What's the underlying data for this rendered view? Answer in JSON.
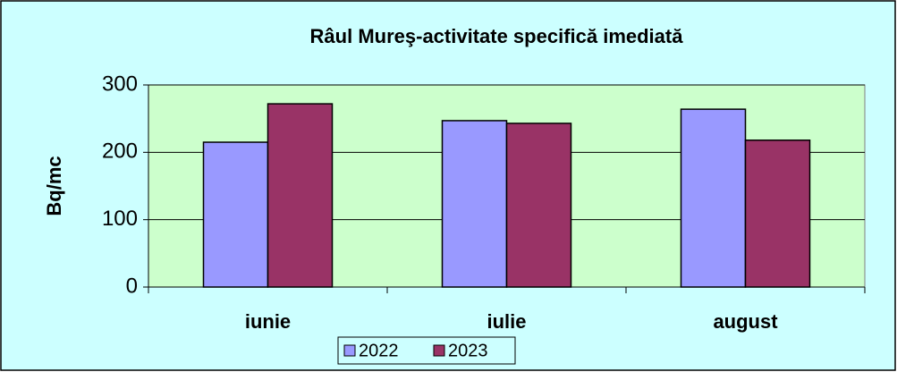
{
  "chart_data": {
    "type": "bar",
    "title": "Râul Mureş-activitate specifică imediată",
    "y_label": "Bq/mc",
    "categories": [
      "iunie",
      "iulie",
      "august"
    ],
    "series": [
      {
        "name": "2022",
        "color": "#9999ff",
        "values": [
          215,
          247,
          264
        ]
      },
      {
        "name": "2023",
        "color": "#993366",
        "values": [
          272,
          243,
          218
        ]
      }
    ],
    "ylim": [
      0,
      300
    ],
    "yticks": [
      0,
      100,
      200,
      300
    ],
    "grid": true,
    "legend": "bottom"
  }
}
